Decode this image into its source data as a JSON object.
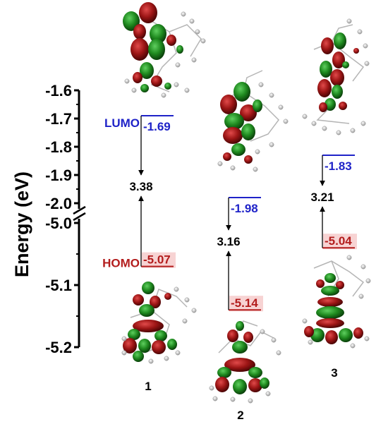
{
  "chart_data": {
    "type": "energy-level-diagram",
    "ylabel": "Energy (eV)",
    "axis_break": true,
    "upper_ylim": [
      -2.0,
      -1.6
    ],
    "lower_ylim": [
      -5.2,
      -5.0
    ],
    "upper_ticks": [
      "-1.6",
      "-1.7",
      "-1.8",
      "-1.9",
      "-2.0"
    ],
    "lower_ticks": [
      "-5.0",
      "-5.1",
      "-5.2"
    ],
    "level_labels": {
      "lumo": "LUMO",
      "homo": "HOMO"
    },
    "colors": {
      "lumo": "#1f23c8",
      "homo": "#b31d1d",
      "homo_highlight": "#f7d3d3",
      "axis": "#000000"
    },
    "compounds": [
      {
        "name": "1",
        "lumo": -1.69,
        "homo": -5.07,
        "gap": 3.38,
        "lumo_text": "-1.69",
        "homo_text": "-5.07",
        "gap_text": "3.38"
      },
      {
        "name": "2",
        "lumo": -1.98,
        "homo": -5.14,
        "gap": 3.16,
        "lumo_text": "-1.98",
        "homo_text": "-5.14",
        "gap_text": "3.16"
      },
      {
        "name": "3",
        "lumo": -1.83,
        "homo": -5.04,
        "gap": 3.21,
        "lumo_text": "-1.83",
        "homo_text": "-5.04",
        "gap_text": "3.21"
      }
    ]
  }
}
